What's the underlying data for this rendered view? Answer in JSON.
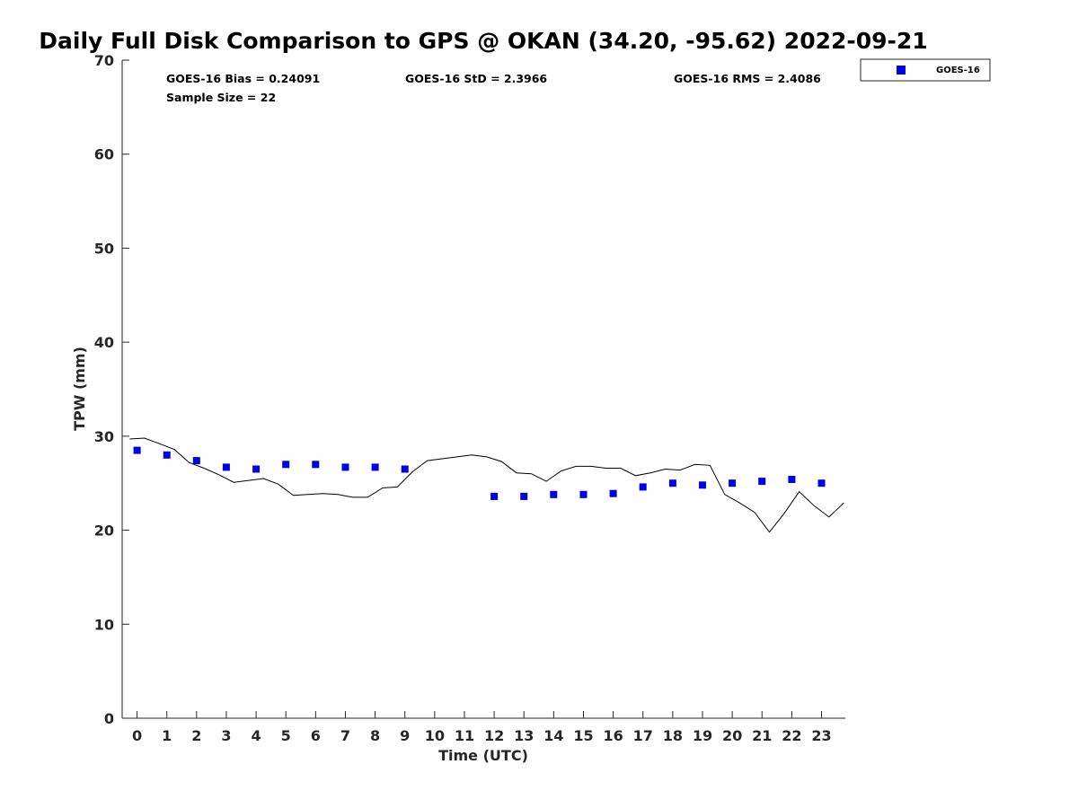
{
  "chart_data": {
    "type": "scatter",
    "title": "Daily Full Disk Comparison to GPS @ OKAN (34.20, -95.62) 2022-09-21",
    "xlabel": "Time (UTC)",
    "ylabel": "TPW (mm)",
    "xlim": [
      -0.5,
      23.8
    ],
    "ylim": [
      0,
      70
    ],
    "xticks": [
      0,
      1,
      2,
      3,
      4,
      5,
      6,
      7,
      8,
      9,
      10,
      11,
      12,
      13,
      14,
      15,
      16,
      17,
      18,
      19,
      20,
      21,
      22,
      23
    ],
    "yticks": [
      0,
      10,
      20,
      30,
      40,
      50,
      60,
      70
    ],
    "grid": false,
    "legend_position": "top-right",
    "stats": {
      "bias": "GOES-16 Bias = 0.24091",
      "std": "GOES-16 StD = 2.3966",
      "rms": "GOES-16 RMS = 2.4086",
      "sample": "Sample Size = 22"
    },
    "series": [
      {
        "name": "GOES-16",
        "marker": "square",
        "color": "#0000e6",
        "x": [
          0,
          1,
          2,
          3,
          4,
          5,
          6,
          7,
          8,
          9,
          12,
          13,
          14,
          15,
          16,
          17,
          18,
          19,
          20,
          21,
          22,
          23
        ],
        "y": [
          28.5,
          28.0,
          27.4,
          26.7,
          26.5,
          27.0,
          27.0,
          26.7,
          26.7,
          26.5,
          23.6,
          23.6,
          23.8,
          23.8,
          23.9,
          24.6,
          25.0,
          24.8,
          25.0,
          25.2,
          25.4,
          25.0
        ]
      },
      {
        "line_color": "#000000",
        "marker": "none",
        "x": [
          -0.25,
          0.25,
          0.75,
          1.25,
          1.75,
          2.25,
          2.75,
          3.25,
          3.75,
          4.25,
          4.75,
          5.25,
          5.75,
          6.25,
          6.75,
          7.25,
          7.75,
          8.25,
          8.75,
          9.25,
          9.75,
          10.25,
          10.75,
          11.25,
          11.75,
          12.25,
          12.75,
          13.25,
          13.75,
          14.25,
          14.75,
          15.25,
          15.75,
          16.25,
          16.75,
          17.25,
          17.75,
          18.25,
          18.75,
          19.25,
          19.75,
          20.25,
          20.75,
          21.25,
          21.75,
          22.25,
          22.75,
          23.25,
          23.75
        ],
        "y": [
          29.7,
          29.8,
          29.2,
          28.6,
          27.2,
          26.6,
          25.9,
          25.1,
          25.3,
          25.5,
          24.9,
          23.7,
          23.8,
          23.9,
          23.8,
          23.5,
          23.5,
          24.5,
          24.6,
          26.2,
          27.4,
          27.6,
          27.8,
          28.0,
          27.8,
          27.3,
          26.1,
          26.0,
          25.2,
          26.3,
          26.8,
          26.8,
          26.6,
          26.6,
          25.8,
          26.1,
          26.5,
          26.4,
          27.0,
          26.9,
          23.8,
          22.9,
          21.9,
          19.8,
          21.8,
          24.1,
          22.6,
          21.4,
          22.9
        ]
      }
    ]
  }
}
